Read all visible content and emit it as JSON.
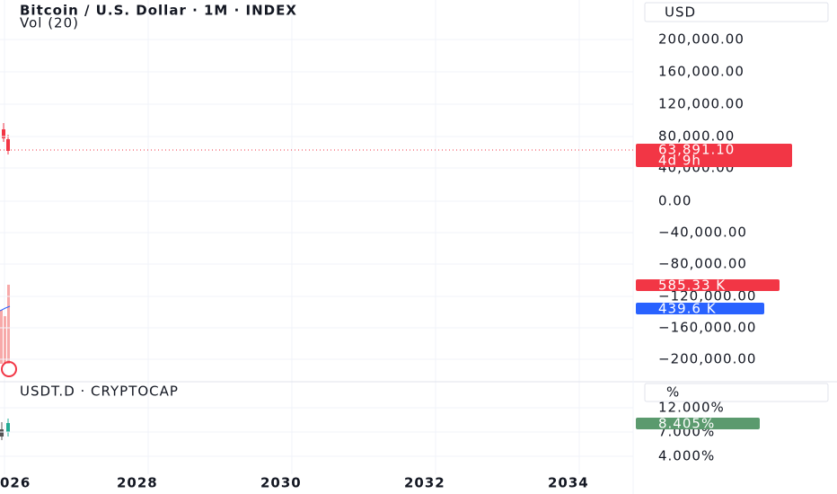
{
  "header": {
    "title": "Bitcoin / U.S. Dollar · 1M · INDEX",
    "indicator": "Vol (20)",
    "currency": "USD"
  },
  "price_axis": {
    "labels": [
      "200,000.00",
      "160,000.00",
      "120,000.00",
      "80,000.00",
      "40,000.00",
      "0.00",
      "−40,000.00",
      "−80,000.00",
      "−120,000.00",
      "−160,000.00",
      "−200,000.00"
    ]
  },
  "price_badge": {
    "price": "63,891.10",
    "countdown": "4d 9h"
  },
  "volume_badges": [
    "585.33 K",
    "439.6 K"
  ],
  "lower_pane": {
    "title": "USDT.D · CRYPTOCAP",
    "unit": "%",
    "labels": [
      "12.000%",
      "7.000%",
      "4.000%"
    ],
    "badge": "8.405%"
  },
  "time_axis": {
    "labels": [
      "026",
      "2028",
      "2030",
      "2032",
      "2034"
    ]
  }
}
